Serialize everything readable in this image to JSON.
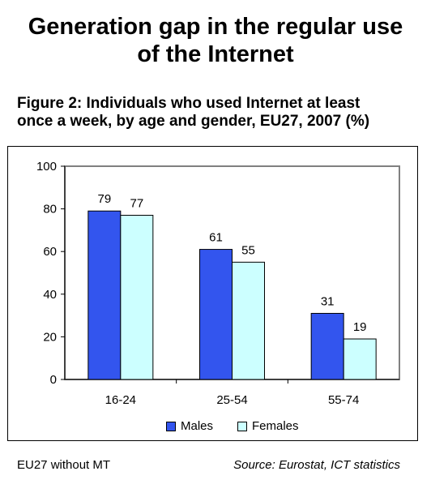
{
  "header": {
    "title_line1": "Generation gap in the regular use",
    "title_line2": "of the Internet"
  },
  "figure": {
    "title_line1": "Figure 2: Individuals who used Internet at least",
    "title_line2": "once a week, by age and gender, EU27, 2007 (%)"
  },
  "footer": {
    "note": "EU27 without MT",
    "source": "Source: Eurostat, ICT statistics"
  },
  "colors": {
    "males": "#3355ee",
    "females": "#ccffff",
    "plot_border": "#808080"
  },
  "chart_data": {
    "type": "bar",
    "categories": [
      "16-24",
      "25-54",
      "55-74"
    ],
    "series": [
      {
        "name": "Males",
        "values": [
          79,
          61,
          31
        ]
      },
      {
        "name": "Females",
        "values": [
          77,
          55,
          19
        ]
      }
    ],
    "ylim": [
      0,
      100
    ],
    "yticks": [
      0,
      20,
      40,
      60,
      80,
      100
    ],
    "grid": false,
    "legend": "bottom",
    "data_labels": true
  }
}
